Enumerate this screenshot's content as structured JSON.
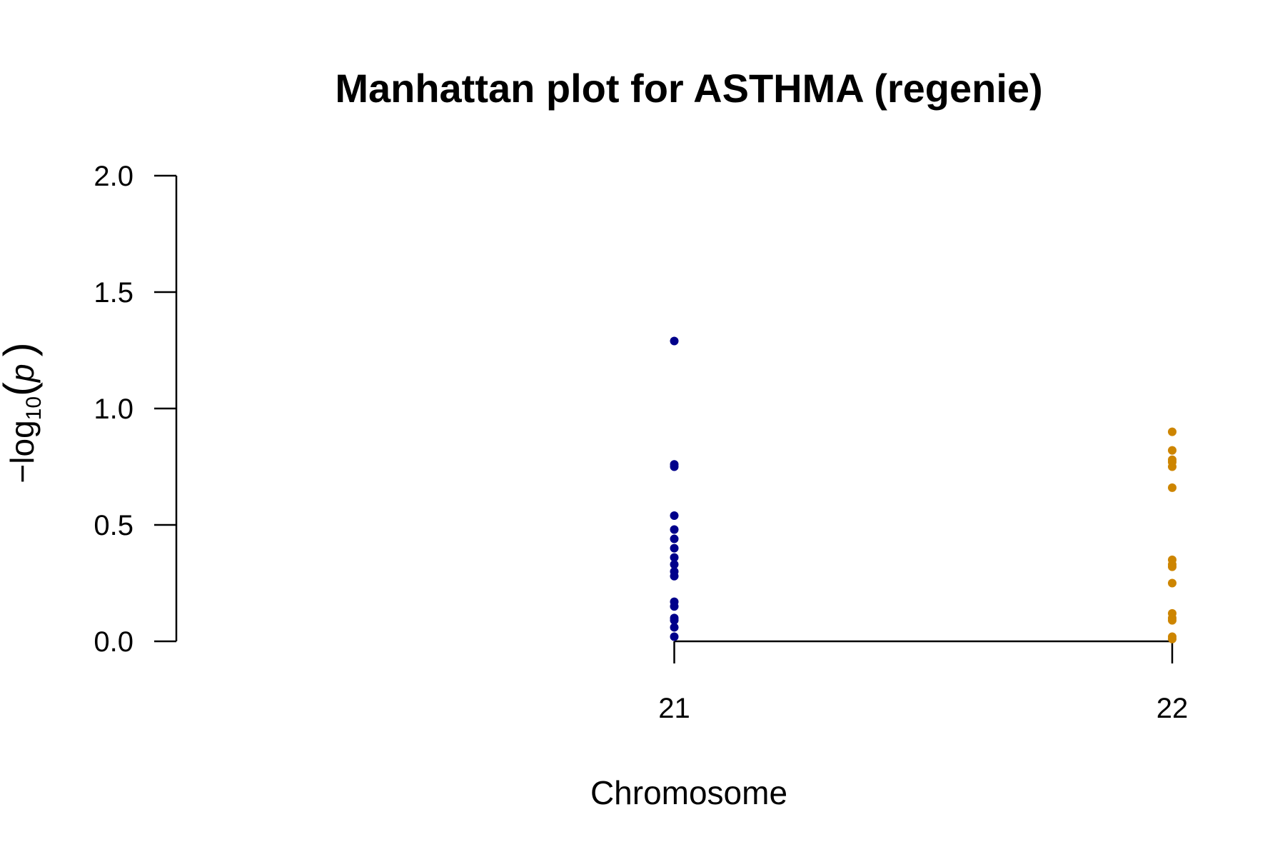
{
  "chart_data": {
    "type": "scatter",
    "title": "Manhattan plot for ASTHMA (regenie)",
    "xlabel": "Chromosome",
    "ylabel": {
      "prefix": "−log",
      "subscript": "10",
      "open": "(",
      "variable": "p",
      "close": ")"
    },
    "ylim": [
      0,
      2
    ],
    "yticks": [
      "0.0",
      "0.5",
      "1.0",
      "1.5",
      "2.0"
    ],
    "yticks_values": [
      0,
      0.5,
      1.0,
      1.5,
      2.0
    ],
    "xlim": [
      20,
      22
    ],
    "categories": [
      "21",
      "22"
    ],
    "grid": false,
    "series": [
      {
        "chromosome": "21",
        "x": 21,
        "color": "#00008B",
        "values": [
          1.29,
          0.76,
          0.75,
          0.54,
          0.48,
          0.44,
          0.4,
          0.36,
          0.33,
          0.3,
          0.28,
          0.17,
          0.15,
          0.1,
          0.09,
          0.06,
          0.02
        ]
      },
      {
        "chromosome": "22",
        "x": 22,
        "color": "#CD8500",
        "values": [
          0.9,
          0.82,
          0.78,
          0.77,
          0.75,
          0.66,
          0.35,
          0.33,
          0.32,
          0.25,
          0.12,
          0.1,
          0.09,
          0.02,
          0.01
        ]
      }
    ]
  }
}
